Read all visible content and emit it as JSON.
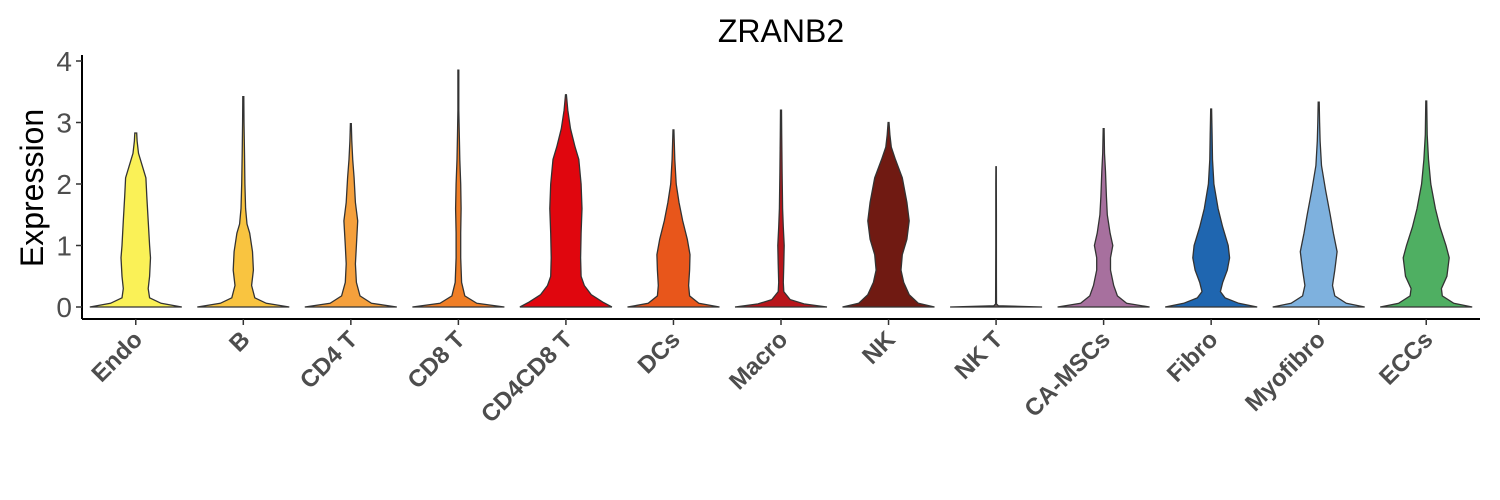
{
  "chart_data": {
    "type": "violin",
    "title": "ZRANB2",
    "ylabel": "Expression",
    "xlabel": "",
    "ylim": [
      -0.2,
      4
    ],
    "yticks": [
      "0",
      "1",
      "2",
      "3",
      "4"
    ],
    "grid": false,
    "legend": "none",
    "series": [
      {
        "category": "Endo",
        "max": 2.83,
        "color": "#FAF157",
        "profile": [
          [
            0,
            1.0
          ],
          [
            0.06,
            0.55
          ],
          [
            0.15,
            0.3
          ],
          [
            0.3,
            0.27
          ],
          [
            0.5,
            0.3
          ],
          [
            0.8,
            0.32
          ],
          [
            1.0,
            0.3
          ],
          [
            1.4,
            0.27
          ],
          [
            1.8,
            0.24
          ],
          [
            2.1,
            0.22
          ],
          [
            2.3,
            0.14
          ],
          [
            2.5,
            0.06
          ],
          [
            2.7,
            0.03
          ],
          [
            2.83,
            0.02
          ]
        ]
      },
      {
        "category": "B",
        "max": 3.42,
        "color": "#F9C440",
        "profile": [
          [
            0,
            1.0
          ],
          [
            0.06,
            0.5
          ],
          [
            0.15,
            0.25
          ],
          [
            0.35,
            0.18
          ],
          [
            0.6,
            0.22
          ],
          [
            0.9,
            0.2
          ],
          [
            1.2,
            0.14
          ],
          [
            1.35,
            0.08
          ],
          [
            1.6,
            0.05
          ],
          [
            2.0,
            0.035
          ],
          [
            2.5,
            0.025
          ],
          [
            3.0,
            0.015
          ],
          [
            3.42,
            0.01
          ]
        ]
      },
      {
        "category": "CD4 T",
        "max": 2.98,
        "color": "#F5A03C",
        "profile": [
          [
            0,
            1.0
          ],
          [
            0.06,
            0.45
          ],
          [
            0.18,
            0.2
          ],
          [
            0.4,
            0.12
          ],
          [
            0.7,
            0.1
          ],
          [
            1.0,
            0.12
          ],
          [
            1.4,
            0.15
          ],
          [
            1.7,
            0.1
          ],
          [
            2.1,
            0.07
          ],
          [
            2.4,
            0.04
          ],
          [
            2.7,
            0.02
          ],
          [
            2.98,
            0.01
          ]
        ]
      },
      {
        "category": "CD8 T",
        "max": 3.85,
        "color": "#F07E26",
        "profile": [
          [
            0,
            1.0
          ],
          [
            0.06,
            0.4
          ],
          [
            0.18,
            0.14
          ],
          [
            0.4,
            0.07
          ],
          [
            0.8,
            0.05
          ],
          [
            1.2,
            0.05
          ],
          [
            1.6,
            0.06
          ],
          [
            2.0,
            0.05
          ],
          [
            2.4,
            0.03
          ],
          [
            2.8,
            0.02
          ],
          [
            3.2,
            0.01
          ],
          [
            3.85,
            0.01
          ]
        ]
      },
      {
        "category": "CD4CD8 T",
        "max": 3.45,
        "color": "#E0060E",
        "profile": [
          [
            0,
            1.0
          ],
          [
            0.08,
            0.8
          ],
          [
            0.2,
            0.55
          ],
          [
            0.35,
            0.4
          ],
          [
            0.5,
            0.33
          ],
          [
            0.8,
            0.32
          ],
          [
            1.2,
            0.33
          ],
          [
            1.6,
            0.35
          ],
          [
            2.0,
            0.33
          ],
          [
            2.4,
            0.28
          ],
          [
            2.6,
            0.2
          ],
          [
            2.9,
            0.1
          ],
          [
            3.2,
            0.04
          ],
          [
            3.45,
            0.01
          ]
        ]
      },
      {
        "category": "DCs",
        "max": 2.88,
        "color": "#E8561B",
        "profile": [
          [
            0,
            1.0
          ],
          [
            0.06,
            0.55
          ],
          [
            0.18,
            0.35
          ],
          [
            0.35,
            0.33
          ],
          [
            0.6,
            0.35
          ],
          [
            0.85,
            0.36
          ],
          [
            1.1,
            0.3
          ],
          [
            1.4,
            0.2
          ],
          [
            1.7,
            0.12
          ],
          [
            2.0,
            0.06
          ],
          [
            2.4,
            0.03
          ],
          [
            2.88,
            0.01
          ]
        ]
      },
      {
        "category": "Macro",
        "max": 3.2,
        "color": "#B8151B",
        "profile": [
          [
            0,
            1.0
          ],
          [
            0.05,
            0.5
          ],
          [
            0.12,
            0.2
          ],
          [
            0.25,
            0.06
          ],
          [
            0.4,
            0.05
          ],
          [
            0.7,
            0.06
          ],
          [
            1.0,
            0.07
          ],
          [
            1.3,
            0.05
          ],
          [
            1.6,
            0.035
          ],
          [
            2.2,
            0.025
          ],
          [
            2.8,
            0.015
          ],
          [
            3.2,
            0.01
          ]
        ]
      },
      {
        "category": "NK",
        "max": 3.0,
        "color": "#701A12",
        "profile": [
          [
            0,
            1.0
          ],
          [
            0.06,
            0.65
          ],
          [
            0.2,
            0.45
          ],
          [
            0.4,
            0.33
          ],
          [
            0.6,
            0.27
          ],
          [
            0.85,
            0.3
          ],
          [
            1.1,
            0.4
          ],
          [
            1.4,
            0.45
          ],
          [
            1.7,
            0.4
          ],
          [
            2.1,
            0.3
          ],
          [
            2.4,
            0.15
          ],
          [
            2.6,
            0.06
          ],
          [
            2.8,
            0.03
          ],
          [
            3.0,
            0.01
          ]
        ]
      },
      {
        "category": "NK T",
        "max": 2.28,
        "color": "#6B5A5A",
        "profile": [
          [
            0,
            1.0
          ],
          [
            0.02,
            0.05
          ],
          [
            0.05,
            0.01
          ],
          [
            0.5,
            0.008
          ],
          [
            1.0,
            0.007
          ],
          [
            1.5,
            0.006
          ],
          [
            2.0,
            0.005
          ],
          [
            2.28,
            0.004
          ]
        ]
      },
      {
        "category": "CA-MSCs",
        "max": 2.9,
        "color": "#A7709E",
        "profile": [
          [
            0,
            1.0
          ],
          [
            0.06,
            0.5
          ],
          [
            0.18,
            0.3
          ],
          [
            0.35,
            0.22
          ],
          [
            0.6,
            0.15
          ],
          [
            0.8,
            0.15
          ],
          [
            1.0,
            0.2
          ],
          [
            1.2,
            0.14
          ],
          [
            1.5,
            0.08
          ],
          [
            1.8,
            0.06
          ],
          [
            2.2,
            0.04
          ],
          [
            2.5,
            0.02
          ],
          [
            2.9,
            0.01
          ]
        ]
      },
      {
        "category": "Fibro",
        "max": 3.22,
        "color": "#1F66B0",
        "profile": [
          [
            0,
            1.0
          ],
          [
            0.06,
            0.6
          ],
          [
            0.15,
            0.3
          ],
          [
            0.25,
            0.2
          ],
          [
            0.4,
            0.25
          ],
          [
            0.6,
            0.35
          ],
          [
            0.8,
            0.4
          ],
          [
            1.0,
            0.37
          ],
          [
            1.3,
            0.25
          ],
          [
            1.6,
            0.15
          ],
          [
            2.0,
            0.06
          ],
          [
            2.4,
            0.03
          ],
          [
            2.8,
            0.02
          ],
          [
            3.22,
            0.01
          ]
        ]
      },
      {
        "category": "Myofibro",
        "max": 3.33,
        "color": "#7EB1DE",
        "profile": [
          [
            0,
            1.0
          ],
          [
            0.06,
            0.6
          ],
          [
            0.18,
            0.35
          ],
          [
            0.35,
            0.3
          ],
          [
            0.6,
            0.35
          ],
          [
            0.9,
            0.4
          ],
          [
            1.2,
            0.32
          ],
          [
            1.5,
            0.25
          ],
          [
            1.9,
            0.15
          ],
          [
            2.3,
            0.06
          ],
          [
            2.7,
            0.03
          ],
          [
            3.0,
            0.02
          ],
          [
            3.33,
            0.01
          ]
        ]
      },
      {
        "category": "ECCs",
        "max": 3.35,
        "color": "#4FAF62",
        "profile": [
          [
            0,
            1.0
          ],
          [
            0.06,
            0.6
          ],
          [
            0.18,
            0.35
          ],
          [
            0.3,
            0.33
          ],
          [
            0.5,
            0.45
          ],
          [
            0.8,
            0.5
          ],
          [
            1.0,
            0.43
          ],
          [
            1.3,
            0.3
          ],
          [
            1.6,
            0.2
          ],
          [
            2.0,
            0.1
          ],
          [
            2.4,
            0.05
          ],
          [
            2.8,
            0.02
          ],
          [
            3.35,
            0.01
          ]
        ]
      }
    ]
  }
}
